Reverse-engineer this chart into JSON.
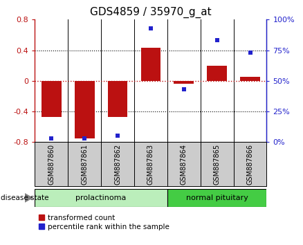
{
  "title": "GDS4859 / 35970_g_at",
  "samples": [
    "GSM887860",
    "GSM887861",
    "GSM887862",
    "GSM887863",
    "GSM887864",
    "GSM887865",
    "GSM887866"
  ],
  "red_bars": [
    -0.47,
    -0.75,
    -0.47,
    0.43,
    -0.04,
    0.2,
    0.05
  ],
  "blue_squares_pct": [
    3,
    3,
    5,
    93,
    43,
    83,
    73
  ],
  "ylim_left": [
    -0.8,
    0.8
  ],
  "ylim_right": [
    0,
    100
  ],
  "yticks_left": [
    -0.8,
    -0.4,
    0.0,
    0.4,
    0.8
  ],
  "yticks_right": [
    0,
    25,
    50,
    75,
    100
  ],
  "ytick_labels_left": [
    "-0.8",
    "-0.4",
    "0",
    "0.4",
    "0.8"
  ],
  "ytick_labels_right": [
    "0%",
    "25%",
    "50%",
    "75%",
    "100%"
  ],
  "hlines_black": [
    -0.4,
    0.4
  ],
  "hline_red": 0.0,
  "red_color": "#bb1111",
  "blue_color": "#2222cc",
  "bar_width": 0.6,
  "prolactinoma_color_light": "#cceecc",
  "prolactinoma_color_dark": "#55cc55",
  "normal_color_dark": "#33cc33",
  "sample_box_color": "#cccccc",
  "disease_state_label": "disease state",
  "legend_red_label": "transformed count",
  "legend_blue_label": "percentile rank within the sample",
  "title_fontsize": 11
}
